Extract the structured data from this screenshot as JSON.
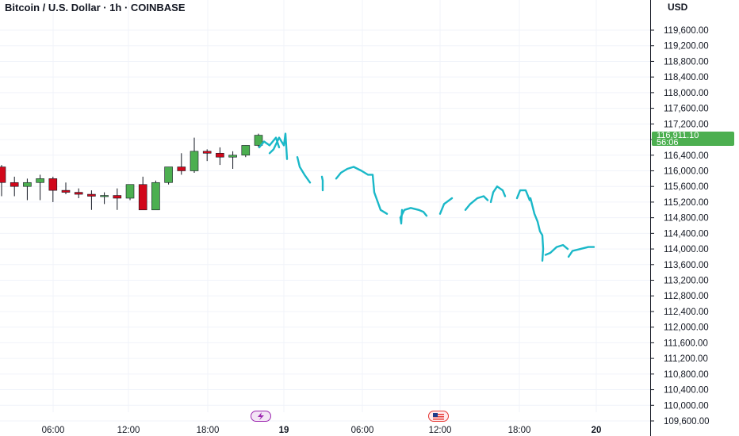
{
  "header": {
    "symbol_title": "Bitcoin / U.S. Dollar · 1h · COINBASE",
    "currency": "USD"
  },
  "last_price": {
    "value": "116,911.10",
    "countdown": "56:06",
    "color": "#4caf50"
  },
  "colors": {
    "up": "#4caf50",
    "down": "#d1081b",
    "wick": "#131722",
    "drawing": "#1ab8c8",
    "grid": "#f0f3fa",
    "axis_line": "#131722"
  },
  "events": [
    {
      "name": "lightning-event-icon",
      "color": "#9c27b0"
    },
    {
      "name": "us-flag-event-icon",
      "color": "#e53935"
    }
  ],
  "chart_data": {
    "type": "candlestick",
    "title": "Bitcoin / U.S. Dollar · 1h · COINBASE",
    "y_axis": {
      "unit": "USD",
      "ticks": [
        "119,600.00",
        "119,200.00",
        "118,800.00",
        "118,400.00",
        "118,000.00",
        "117,600.00",
        "117,200.00",
        "116,800.00",
        "116,400.00",
        "116,000.00",
        "115,600.00",
        "115,200.00",
        "114,800.00",
        "114,400.00",
        "114,000.00",
        "113,600.00",
        "113,200.00",
        "112,800.00",
        "112,400.00",
        "112,000.00",
        "111,600.00",
        "111,200.00",
        "110,800.00",
        "110,400.00",
        "110,000.00",
        "109,600.00"
      ],
      "range": [
        109600,
        120000
      ]
    },
    "x_axis": {
      "ticks": [
        {
          "label": "06:00",
          "bold": false
        },
        {
          "label": "12:00",
          "bold": false
        },
        {
          "label": "18:00",
          "bold": false
        },
        {
          "label": "19",
          "bold": true
        },
        {
          "label": "06:00",
          "bold": false
        },
        {
          "label": "12:00",
          "bold": false
        },
        {
          "label": "18:00",
          "bold": false
        },
        {
          "label": "20",
          "bold": true
        }
      ]
    },
    "candles": [
      {
        "o": 116100,
        "h": 116150,
        "l": 115350,
        "c": 115700
      },
      {
        "o": 115700,
        "h": 115850,
        "l": 115350,
        "c": 115600
      },
      {
        "o": 115600,
        "h": 115800,
        "l": 115250,
        "c": 115700
      },
      {
        "o": 115700,
        "h": 115900,
        "l": 115250,
        "c": 115800
      },
      {
        "o": 115800,
        "h": 115850,
        "l": 115200,
        "c": 115500
      },
      {
        "o": 115500,
        "h": 115700,
        "l": 115400,
        "c": 115450
      },
      {
        "o": 115450,
        "h": 115550,
        "l": 115300,
        "c": 115400
      },
      {
        "o": 115400,
        "h": 115500,
        "l": 115000,
        "c": 115350
      },
      {
        "o": 115350,
        "h": 115450,
        "l": 115150,
        "c": 115370
      },
      {
        "o": 115370,
        "h": 115550,
        "l": 115000,
        "c": 115300
      },
      {
        "o": 115300,
        "h": 115650,
        "l": 115250,
        "c": 115650
      },
      {
        "o": 115650,
        "h": 115850,
        "l": 115050,
        "c": 115000
      },
      {
        "o": 115000,
        "h": 115750,
        "l": 115000,
        "c": 115700
      },
      {
        "o": 115700,
        "h": 116100,
        "l": 115650,
        "c": 116100
      },
      {
        "o": 116100,
        "h": 116450,
        "l": 115900,
        "c": 116000
      },
      {
        "o": 116000,
        "h": 116850,
        "l": 115950,
        "c": 116500
      },
      {
        "o": 116500,
        "h": 116550,
        "l": 116250,
        "c": 116450
      },
      {
        "o": 116450,
        "h": 116600,
        "l": 116150,
        "c": 116350
      },
      {
        "o": 116350,
        "h": 116500,
        "l": 116050,
        "c": 116400
      },
      {
        "o": 116400,
        "h": 116650,
        "l": 116350,
        "c": 116650
      },
      {
        "o": 116650,
        "h": 116950,
        "l": 116600,
        "c": 116911
      }
    ],
    "projection": [
      [
        [
          116600,
          116750,
          116650,
          116850,
          116600
        ],
        [
          116450,
          116550,
          116850,
          116650,
          116950,
          116300
        ]
      ],
      [
        [
          116350,
          116100,
          115900,
          115700
        ]
      ],
      [
        [
          115850,
          115750,
          115650,
          115500
        ]
      ],
      [
        [
          115800,
          115950,
          116050,
          116100,
          116000,
          115900,
          115900,
          115450,
          115000,
          114900
        ]
      ],
      [
        [
          114800,
          115000,
          115050,
          115000,
          114950,
          114850
        ],
        [
          114800,
          114650,
          114650,
          115000
        ]
      ],
      [
        [
          114900,
          115150,
          115300
        ]
      ],
      [
        [
          115000,
          115150,
          115300,
          115350,
          115250
        ]
      ],
      [
        [
          115200,
          115450,
          115600,
          115500,
          115350
        ]
      ],
      [
        [
          115300,
          115500,
          115500,
          115250
        ],
        [
          115300,
          114900,
          114700,
          114450,
          114350,
          114000,
          113700
        ]
      ],
      [
        [
          113850,
          113900,
          114050,
          114100,
          114000
        ]
      ],
      [
        [
          113800,
          113950,
          114000,
          114050,
          114050
        ]
      ]
    ]
  }
}
